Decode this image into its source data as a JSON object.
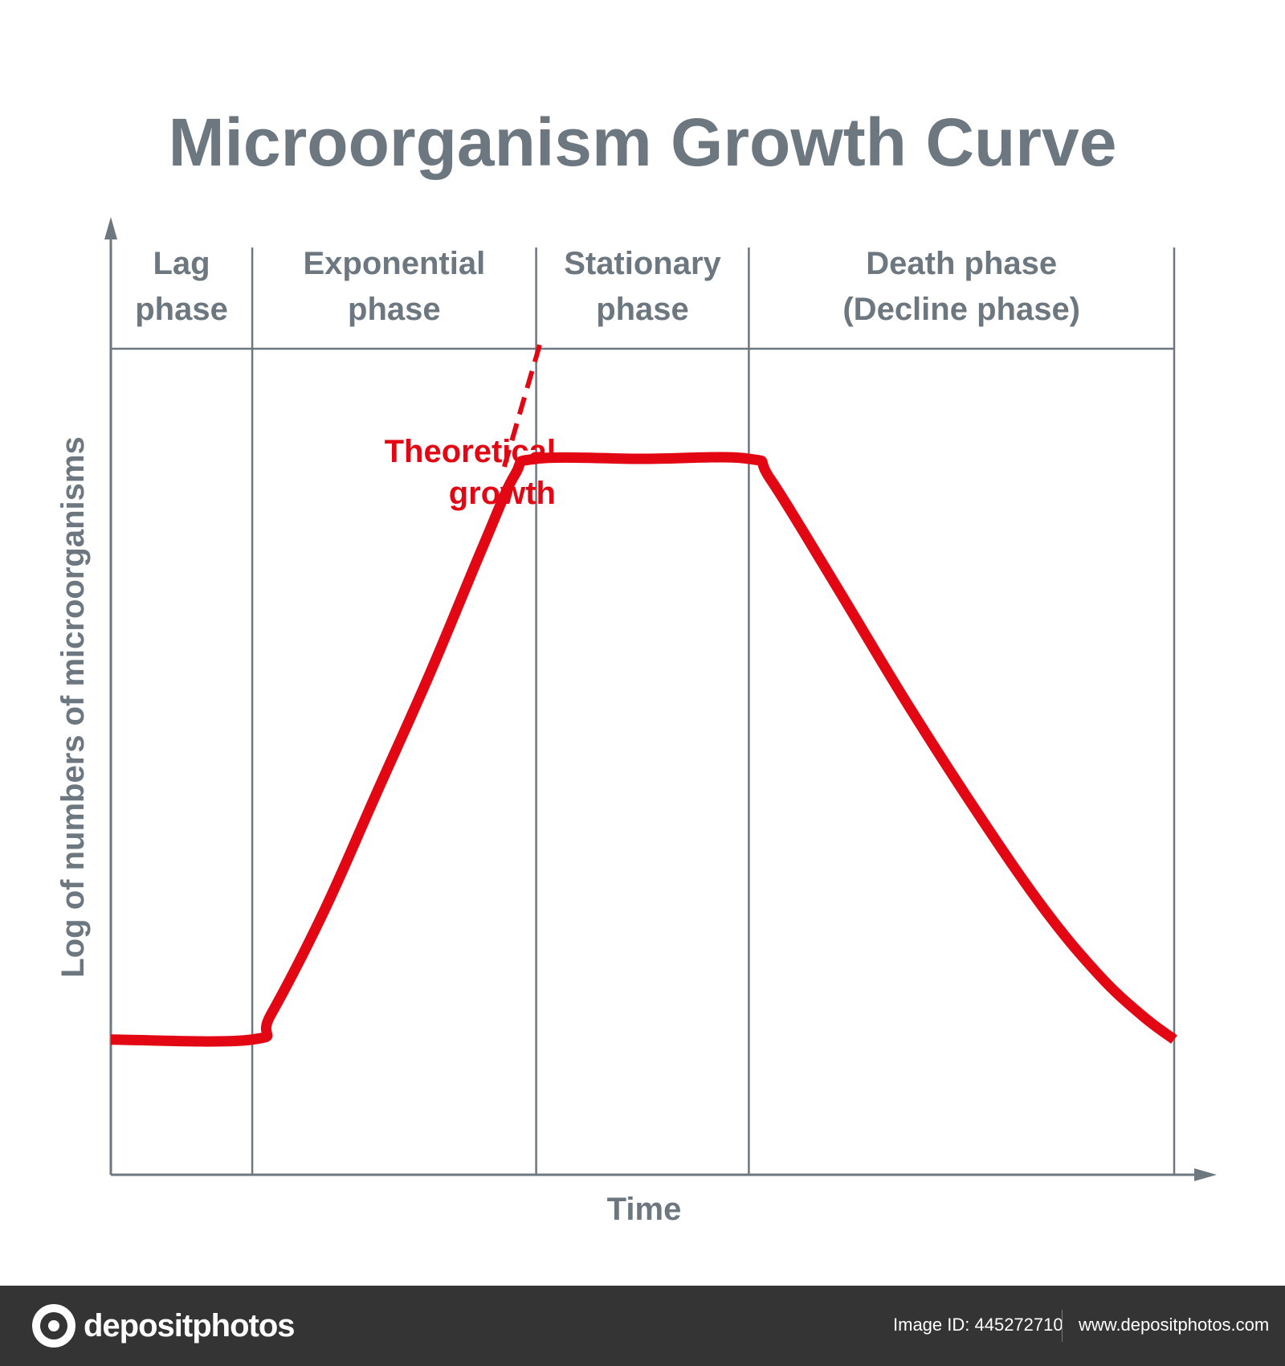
{
  "chart_data": {
    "type": "line",
    "title": "Microorganism Growth Curve",
    "xlabel": "Time",
    "ylabel": "Log of numbers of microorganisms",
    "xlim": [
      0,
      10
    ],
    "ylim": [
      0,
      10
    ],
    "grid": false,
    "phases": [
      {
        "lines": [
          "Lag",
          "phase"
        ],
        "x_start": 0,
        "x_end": 1.33
      },
      {
        "lines": [
          "Exponential",
          "phase"
        ],
        "x_start": 1.33,
        "x_end": 4.0
      },
      {
        "lines": [
          "Stationary",
          "phase"
        ],
        "x_start": 4.0,
        "x_end": 6.0
      },
      {
        "lines": [
          "Death phase",
          "(Decline phase)"
        ],
        "x_start": 6.0,
        "x_end": 10.0
      }
    ],
    "series": [
      {
        "style": "solid",
        "color": "#e30613",
        "points": [
          [
            0,
            1.7
          ],
          [
            1.33,
            1.7
          ],
          [
            1.5,
            2.0
          ],
          [
            2.0,
            3.3
          ],
          [
            2.5,
            4.8
          ],
          [
            3.0,
            6.3
          ],
          [
            3.5,
            7.9
          ],
          [
            3.8,
            8.8
          ],
          [
            4.0,
            9.0
          ],
          [
            5.0,
            9.0
          ],
          [
            6.0,
            9.0
          ],
          [
            6.2,
            8.75
          ],
          [
            6.8,
            7.45
          ],
          [
            7.5,
            5.9
          ],
          [
            8.2,
            4.45
          ],
          [
            8.8,
            3.3
          ],
          [
            9.3,
            2.5
          ],
          [
            9.7,
            2.0
          ],
          [
            10.0,
            1.7
          ]
        ]
      },
      {
        "name": "Theoretical growth",
        "style": "dashed",
        "color": "#e30613",
        "points": [
          [
            3.7,
            8.9
          ],
          [
            4.7,
            13.5
          ]
        ]
      }
    ],
    "annotations": [
      {
        "lines": [
          "Theoretical",
          "growth"
        ],
        "color": "#e30613"
      }
    ]
  },
  "footer": {
    "logo_text": "depositphotos",
    "image_id": "Image ID: 445272710",
    "url": "www.depositphotos.com"
  },
  "colors": {
    "text_gray": "#6d7780",
    "axis_gray": "#6d7780",
    "curve_red": "#e30613",
    "footer_bg": "#343434"
  }
}
